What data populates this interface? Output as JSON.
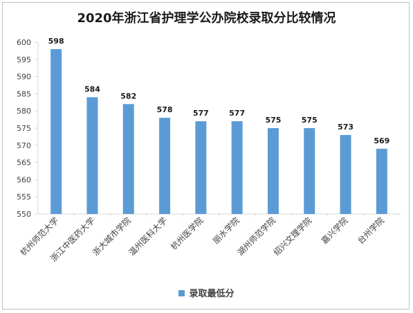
{
  "chart_data": {
    "type": "bar",
    "title": "2020年浙江省护理学公办院校录取分比较情况",
    "categories": [
      "杭州师范大学",
      "浙江中医药大学",
      "浙大城市学院",
      "温州医科大学",
      "杭州医学院",
      "丽水学院",
      "湖州师范学院",
      "绍兴文理学院",
      "嘉兴学院",
      "台州学院"
    ],
    "series": [
      {
        "name": "录取最低分",
        "values": [
          598,
          584,
          582,
          578,
          577,
          577,
          575,
          575,
          573,
          569
        ]
      }
    ],
    "xlabel": "",
    "ylabel": "",
    "ylim": [
      550,
      600
    ],
    "yticks": [
      550,
      555,
      560,
      565,
      570,
      575,
      580,
      585,
      590,
      595,
      600
    ],
    "grid": false,
    "legend": "bottom",
    "bar_color": "#5b9bd5",
    "data_labels": true
  }
}
